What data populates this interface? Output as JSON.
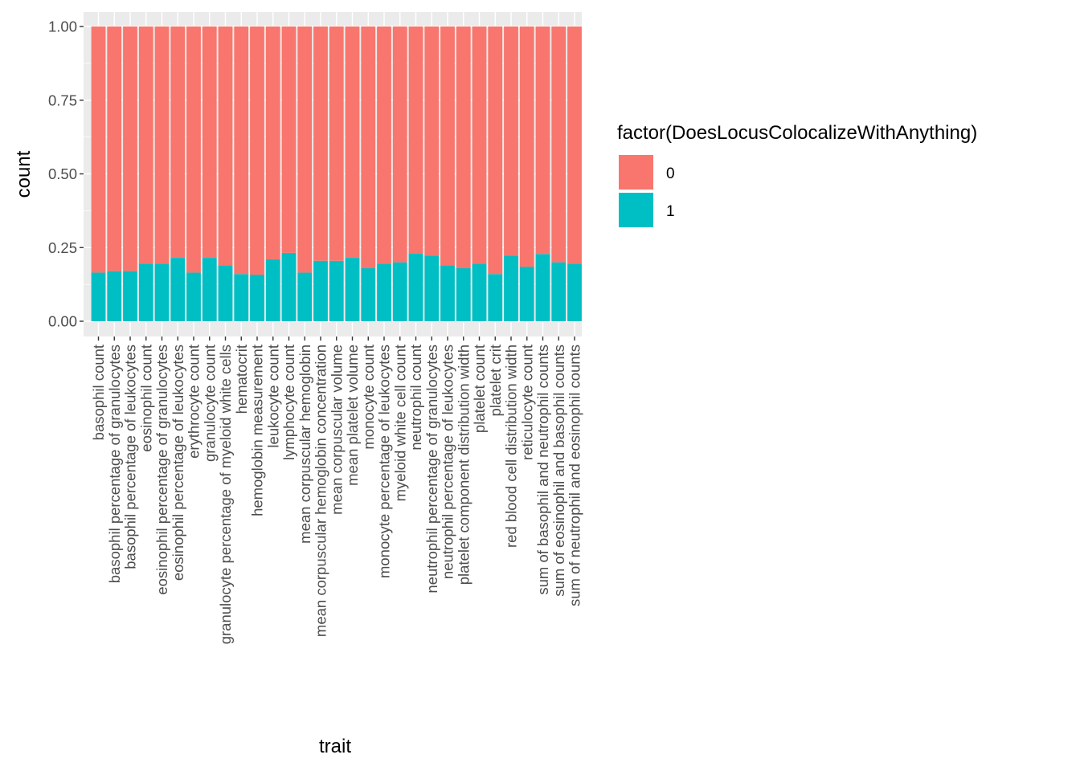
{
  "chart_data": {
    "type": "bar",
    "stacked": true,
    "xlabel": "trait",
    "ylabel": "count",
    "ylim": [
      0,
      1
    ],
    "yticks": [
      "0.00",
      "0.25",
      "0.50",
      "0.75",
      "1.00"
    ],
    "ytick_values": [
      0,
      0.25,
      0.5,
      0.75,
      1.0
    ],
    "grid": true,
    "legend_position": "right",
    "legend_title": "factor(DoesLocusColocalizeWithAnything)",
    "categories": [
      "basophil count",
      "basophil percentage of granulocytes",
      "basophil percentage of leukocytes",
      "eosinophil count",
      "eosinophil percentage of granulocytes",
      "eosinophil percentage of leukocytes",
      "erythrocyte count",
      "granulocyte count",
      "granulocyte percentage of myeloid white cells",
      "hematocrit",
      "hemoglobin measurement",
      "leukocyte count",
      "lymphocyte count",
      "mean corpuscular hemoglobin",
      "mean corpuscular hemoglobin concentration",
      "mean corpuscular volume",
      "mean platelet volume",
      "monocyte count",
      "monocyte percentage of leukocytes",
      "myeloid white cell count",
      "neutrophil count",
      "neutrophil percentage of granulocytes",
      "neutrophil percentage of leukocytes",
      "platelet component distribution width",
      "platelet count",
      "platelet crit",
      "red blood cell distribution width",
      "reticulocyte count",
      "sum of basophil and neutrophil counts",
      "sum of eosinophil and basophil counts",
      "sum of neutrophil and eosinophil counts"
    ],
    "series": [
      {
        "name": "0",
        "color": "#F8766D",
        "values": [
          0.835,
          0.83,
          0.83,
          0.805,
          0.805,
          0.785,
          0.835,
          0.785,
          0.81,
          0.84,
          0.842,
          0.79,
          0.768,
          0.835,
          0.795,
          0.795,
          0.785,
          0.82,
          0.805,
          0.8,
          0.77,
          0.778,
          0.81,
          0.82,
          0.805,
          0.84,
          0.778,
          0.815,
          0.772,
          0.8,
          0.805
        ]
      },
      {
        "name": "1",
        "color": "#00BFC4",
        "values": [
          0.165,
          0.17,
          0.17,
          0.195,
          0.195,
          0.215,
          0.165,
          0.215,
          0.19,
          0.16,
          0.158,
          0.21,
          0.232,
          0.165,
          0.205,
          0.205,
          0.215,
          0.18,
          0.195,
          0.2,
          0.23,
          0.222,
          0.19,
          0.18,
          0.195,
          0.16,
          0.222,
          0.185,
          0.228,
          0.2,
          0.195
        ]
      }
    ]
  }
}
